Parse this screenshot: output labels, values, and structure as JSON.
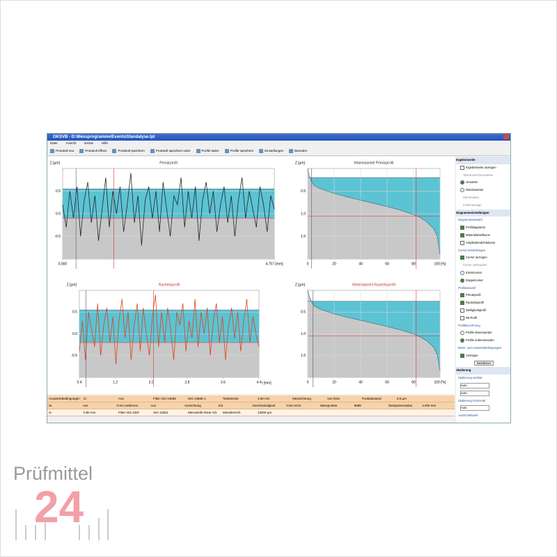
{
  "window": {
    "title": "OKSVB - D:\\Messprogramme\\Events\\Standalyse.tpl",
    "menu": [
      "Datei",
      "Ansicht",
      "Extras",
      "Hilfe"
    ],
    "toolbar": [
      "Protokoll neu",
      "Protokoll öffnen",
      "Protokoll speichern",
      "Protokoll speichern unter",
      "Profile laden",
      "Profile speichern",
      "Einstellungen",
      "Beenden"
    ]
  },
  "panels": [
    {
      "kind": "profile",
      "title": "Primärprofil",
      "y_label": "Z [µm]",
      "color": "#222222",
      "title_color": "#333333",
      "xlim": [
        0,
        4.757
      ],
      "ylim": [
        -1.0,
        1.0
      ],
      "yticks": [
        -0.5,
        {
          "value": 0,
          "label": "0.0"
        },
        0.5
      ],
      "xticks": [
        {
          "value": 0,
          "label": "0.000"
        },
        {
          "value": 4.757,
          "label": "4.757 [mm]"
        }
      ],
      "cursor_upper": 0.55,
      "cursor_lower": -0.1,
      "cursor_x": [
        0.3,
        1.15
      ],
      "values": [
        0.2,
        -0.3,
        0.5,
        -0.1,
        0.6,
        -0.5,
        0.3,
        0.7,
        -0.2,
        0.4,
        -0.6,
        0.1,
        0.8,
        -0.3,
        0.5,
        0.0,
        0.6,
        -0.4,
        0.2,
        0.9,
        -0.2,
        0.4,
        -0.7,
        0.3,
        0.6,
        -0.1,
        0.5,
        -0.4,
        0.7,
        0.1,
        -0.5,
        0.4,
        0.2,
        0.8,
        -0.3,
        0.5,
        -0.1,
        0.6,
        -0.6,
        0.3,
        0.7,
        0.0,
        0.5,
        -0.4,
        0.2,
        0.6,
        -0.2,
        0.4,
        -0.5,
        0.3,
        0.8,
        -0.1,
        0.5,
        0.1,
        -0.3,
        0.6,
        0.2,
        -0.4,
        0.4,
        0.1
      ]
    },
    {
      "kind": "abbott",
      "title": "Materialanteil Primärprofil",
      "y_label": "Z [µm]",
      "color": "#557788",
      "title_color": "#333333",
      "xlim": [
        0,
        100
      ],
      "ylim": [
        0,
        2.0
      ],
      "yticks": [
        0.5,
        {
          "value": 1,
          "label": "1.0"
        },
        1.5
      ],
      "xticks": [
        0,
        20,
        40,
        60,
        80,
        {
          "value": 100,
          "label": "100 [%]"
        }
      ],
      "cursor_upper": 0.2,
      "cursor_lower": 1.05,
      "cursor_x": [
        3,
        82
      ],
      "x": [
        0,
        1,
        3,
        5,
        10,
        20,
        30,
        40,
        50,
        60,
        70,
        80,
        85,
        90,
        95,
        98,
        100
      ],
      "values": [
        0,
        0.15,
        0.3,
        0.38,
        0.45,
        0.55,
        0.63,
        0.7,
        0.77,
        0.84,
        0.92,
        1.02,
        1.08,
        1.18,
        1.32,
        1.5,
        1.9
      ]
    },
    {
      "kind": "profile",
      "title": "Rauheitsprofil",
      "y_label": "Z [µm]",
      "color": "#e0401a",
      "title_color": "#d03010",
      "xlim": [
        0.4,
        4.4
      ],
      "ylim": [
        -1.0,
        1.0
      ],
      "yticks": [
        -0.5,
        {
          "value": 0,
          "label": "0.0"
        },
        0.5
      ],
      "xticks": [
        0.4,
        1.2,
        {
          "value": 2,
          "label": "2.0"
        },
        2.8,
        3.6,
        4.4
      ],
      "x_label": "l [mm]",
      "cursor_upper": 0.55,
      "cursor_lower": -0.2,
      "cursor_x": [
        0.55,
        2.05
      ],
      "values": [
        -0.4,
        0.3,
        -0.6,
        0.5,
        0.1,
        -0.3,
        0.7,
        -0.5,
        0.2,
        0.6,
        -0.2,
        0.4,
        -0.7,
        0.3,
        0.8,
        -0.1,
        0.5,
        -0.6,
        0.2,
        0.7,
        -0.4,
        0.6,
        0.0,
        -0.5,
        0.4,
        0.9,
        -0.3,
        0.5,
        -0.2,
        0.6,
        0.1,
        -0.6,
        0.5,
        0.2,
        0.7,
        -0.4,
        0.3,
        -0.1,
        0.8,
        -0.3,
        0.5,
        0.0,
        0.6,
        -0.5,
        0.3,
        0.7,
        -0.2,
        0.4,
        -0.6,
        0.2,
        0.6,
        -0.1,
        0.5,
        -0.4,
        0.3,
        0.8,
        -0.2,
        0.4,
        0.0,
        -0.3
      ]
    },
    {
      "kind": "abbott",
      "title": "Materialanteil Rauheitsprofil",
      "y_label": "Z [µm]",
      "color": "#557788",
      "title_color": "#d03010",
      "xlim": [
        0,
        100
      ],
      "ylim": [
        0,
        2.0
      ],
      "yticks": [
        0.5,
        {
          "value": 1,
          "label": "1.0"
        },
        1.5
      ],
      "xticks": [
        0,
        20,
        40,
        60,
        80,
        {
          "value": 100,
          "label": "100 [%]"
        }
      ],
      "cursor_upper": 0.25,
      "cursor_lower": 1.05,
      "cursor_x": [
        4,
        82
      ],
      "x": [
        0,
        1,
        3,
        5,
        10,
        20,
        30,
        40,
        50,
        60,
        70,
        80,
        85,
        90,
        95,
        98,
        100
      ],
      "values": [
        0,
        0.12,
        0.28,
        0.36,
        0.44,
        0.54,
        0.62,
        0.69,
        0.76,
        0.83,
        0.91,
        1.0,
        1.07,
        1.16,
        1.3,
        1.48,
        1.85
      ]
    }
  ],
  "table": {
    "rows": [
      [
        "Auswertebedingungen",
        "λc",
        "Aus",
        "Filter ISO 13565",
        "ISO 13565-1",
        "Taststrecke",
        "4.80 mm",
        "Messrichtung",
        "Von links",
        "Punktabstand",
        "0.5 µm"
      ],
      [
        "λs",
        "Aus",
        "Form entfernen",
        "Aus",
        "Ausrichtung",
        "Ein",
        "Geschwindigkeit",
        "0.50 mm/s",
        "Messpunkte",
        "9595",
        "Tastspitzenradius",
        "2.000 mm"
      ],
      [
        "λc",
        "0.80 mm",
        "Filter ISO 4287",
        "ISO 11562",
        "Messstelle linear V/2",
        "Messbereich",
        "13000 µm"
      ]
    ]
  },
  "sidebar": [
    {
      "text": "Ergebnisseite",
      "kind": "header"
    },
    {
      "text": "Ergebnisseite anzeigen",
      "kind": "check"
    },
    {
      "text": "Toleranzen/Grenzwerte",
      "kind": "sub"
    },
    {
      "text": "Gesamte",
      "kind": "radio",
      "checked": true
    },
    {
      "text": "Relativwerten",
      "kind": "radio"
    },
    {
      "text": "Sternmarker",
      "kind": "sub"
    },
    {
      "text": "Fehleranzeige",
      "kind": "sub"
    },
    {
      "text": "Diagrammeinstellungen",
      "kind": "header"
    },
    {
      "text": "Diagrammauswahl",
      "kind": "group"
    },
    {
      "text": "Profildiagramm",
      "kind": "check",
      "checked": true
    },
    {
      "text": "Materialanteilkurve",
      "kind": "check",
      "checked": true
    },
    {
      "text": "Amplitudendichtekurve",
      "kind": "check"
    },
    {
      "text": "Cursor-Einstellungen",
      "kind": "group"
    },
    {
      "text": "Cursor anzeigen",
      "kind": "check",
      "checked": true
    },
    {
      "text": "Cursor verknüpfen",
      "kind": "sub"
    },
    {
      "text": "Einzelcursor",
      "kind": "radio"
    },
    {
      "text": "Doppelcursor",
      "kind": "radio",
      "checked": true
    },
    {
      "text": "Profilauswahl",
      "kind": "group"
    },
    {
      "text": "Primärprofil",
      "kind": "check",
      "checked": true
    },
    {
      "text": "Rauheitsprofil",
      "kind": "check",
      "checked": true
    },
    {
      "text": "Welligkeitsprofil",
      "kind": "check"
    },
    {
      "text": "Rk-Profil",
      "kind": "check"
    },
    {
      "text": "Profilberechnung",
      "kind": "group"
    },
    {
      "text": "Profile übereinander",
      "kind": "radio"
    },
    {
      "text": "Profile nebeneinander",
      "kind": "radio",
      "checked": true
    },
    {
      "text": "Mess- und Auswertebedingungen",
      "kind": "group"
    },
    {
      "text": "Anzeigen",
      "kind": "check",
      "checked": true
    },
    {
      "text": "Bearbeiten",
      "kind": "button"
    },
    {
      "text": "Skalierung",
      "kind": "header"
    },
    {
      "text": "Skalierung vertikal",
      "kind": "group"
    },
    {
      "text": "Auto",
      "kind": "select"
    },
    {
      "text": "Auto",
      "kind": "select"
    },
    {
      "text": "Skalierung horizontal",
      "kind": "group"
    },
    {
      "text": "Auto",
      "kind": "select"
    },
    {
      "text": "Ausschnittwahl",
      "kind": "group"
    }
  ],
  "logo": {
    "brand": "Prüfmittel",
    "number": "24"
  }
}
